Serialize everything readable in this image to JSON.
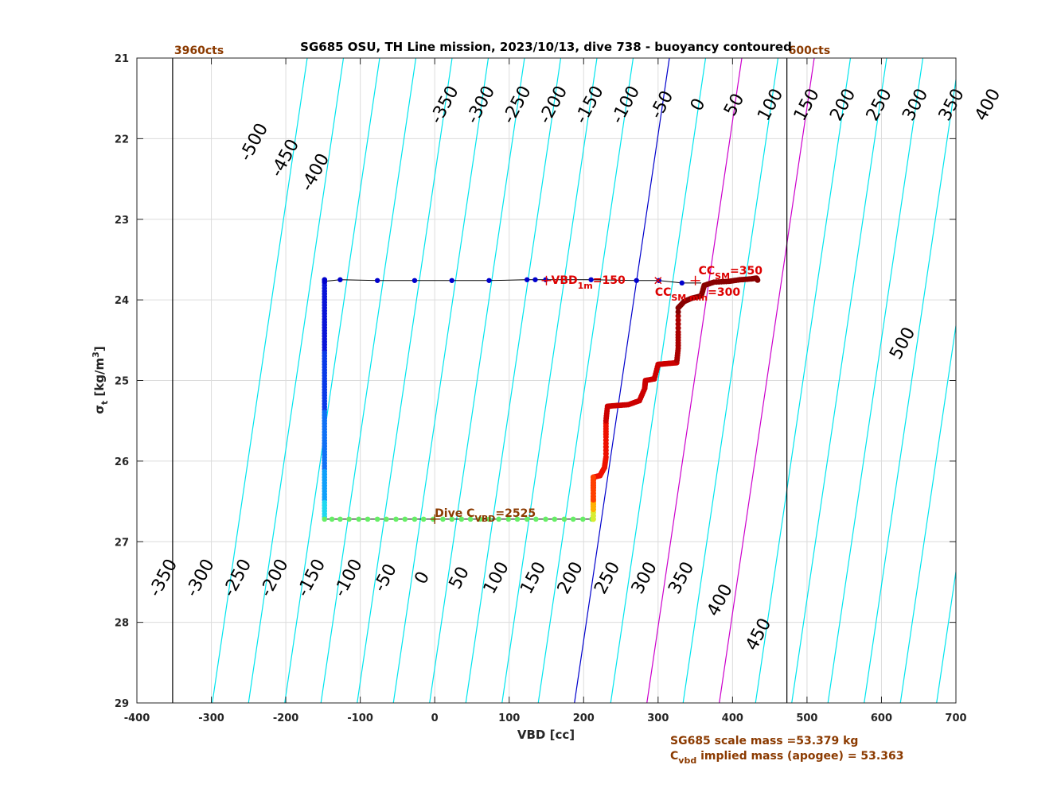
{
  "chart_data": {
    "type": "scatter",
    "title": "SG685 OSU, TH Line mission, 2023/10/13, dive 738 - buoyancy contoured",
    "xlabel": "VBD [cc]",
    "ylabel": {
      "base": "σ",
      "sub": "t",
      "rest": " [kg/m",
      "sup": "3",
      "end": "]"
    },
    "xlim": [
      -400,
      700
    ],
    "ylim": [
      21,
      29
    ],
    "y_reversed": true,
    "grid": true,
    "xticks": [
      -400,
      -300,
      -200,
      -100,
      0,
      100,
      200,
      300,
      400,
      500,
      600,
      700
    ],
    "yticks": [
      21,
      22,
      23,
      24,
      25,
      26,
      27,
      28,
      29
    ],
    "vbd_limits": [
      {
        "label": "3960cts",
        "x": -352
      },
      {
        "label": "600cts",
        "x": 473
      }
    ],
    "buoyancy_contours": {
      "color": "#00e5ee",
      "levels": [
        -500,
        -450,
        -400,
        -350,
        -300,
        -250,
        -200,
        -150,
        -100,
        -50,
        0,
        50,
        100,
        150,
        200,
        250,
        300,
        350,
        400,
        450,
        500
      ],
      "zero_color": "#0000cc",
      "highlight_color": "#cc00cc",
      "highlight_levels": [
        100,
        200
      ],
      "labels_top": [
        "-500",
        "-450",
        "-400",
        "-350",
        "-300",
        "-250",
        "-200",
        "-150",
        "-100",
        "-50",
        "0",
        "50",
        "100",
        "150",
        "200",
        "250",
        "300",
        "350",
        "400",
        "500"
      ],
      "labels_bottom": [
        "-350",
        "-300",
        "-250",
        "-200",
        "-150",
        "-100",
        "-50",
        "0",
        "50",
        "100",
        "150",
        "200",
        "250",
        "300",
        "350",
        "400",
        "450"
      ]
    },
    "dive_trace": {
      "upper_leg": {
        "color": "#0000cc",
        "points": [
          [
            -148,
            23.75
          ],
          [
            -148,
            23.77
          ],
          [
            -127,
            23.75
          ],
          [
            -77,
            23.76
          ],
          [
            -27,
            23.76
          ],
          [
            23,
            23.76
          ],
          [
            73,
            23.76
          ],
          [
            124,
            23.75
          ],
          [
            135,
            23.75
          ],
          [
            149,
            23.75
          ],
          [
            210,
            23.75
          ],
          [
            271,
            23.76
          ],
          [
            301,
            23.76
          ],
          [
            332,
            23.79
          ]
        ]
      },
      "descent_column": {
        "x": -148,
        "y_from": 23.75,
        "y_to": 26.72
      },
      "bottom_leg": {
        "color": "#66ee66",
        "points": [
          [
            -148,
            26.72
          ],
          [
            -138,
            26.72
          ],
          [
            -127,
            26.72
          ],
          [
            -115,
            26.72
          ],
          [
            -102,
            26.72
          ],
          [
            -90,
            26.72
          ],
          [
            -77,
            26.72
          ],
          [
            -65,
            26.72
          ],
          [
            -52,
            26.72
          ],
          [
            -40,
            26.72
          ],
          [
            -27,
            26.72
          ],
          [
            -15,
            26.72
          ],
          [
            -2,
            26.72
          ],
          [
            11,
            26.72
          ],
          [
            23,
            26.72
          ],
          [
            36,
            26.72
          ],
          [
            48,
            26.72
          ],
          [
            61,
            26.72
          ],
          [
            73,
            26.72
          ],
          [
            86,
            26.72
          ],
          [
            99,
            26.72
          ],
          [
            111,
            26.72
          ],
          [
            124,
            26.72
          ],
          [
            136,
            26.72
          ],
          [
            149,
            26.72
          ],
          [
            161,
            26.72
          ],
          [
            174,
            26.72
          ],
          [
            186,
            26.72
          ],
          [
            199,
            26.72
          ],
          [
            211,
            26.72
          ]
        ]
      },
      "ascent_leg": {
        "color": "#cc0000",
        "points": [
          [
            213,
            26.6
          ],
          [
            213,
            26.4
          ],
          [
            213,
            26.2
          ],
          [
            222,
            26.18
          ],
          [
            228,
            26.08
          ],
          [
            230,
            25.95
          ],
          [
            230,
            25.7
          ],
          [
            230,
            25.5
          ],
          [
            232,
            25.32
          ],
          [
            245,
            25.31
          ],
          [
            260,
            25.3
          ],
          [
            275,
            25.25
          ],
          [
            282,
            25.1
          ],
          [
            283,
            25.0
          ],
          [
            295,
            24.98
          ],
          [
            300,
            24.8
          ],
          [
            312,
            24.79
          ],
          [
            325,
            24.78
          ],
          [
            327,
            24.6
          ],
          [
            327,
            24.4
          ],
          [
            327,
            24.1
          ],
          [
            335,
            24.02
          ],
          [
            345,
            23.98
          ],
          [
            358,
            23.95
          ],
          [
            362,
            23.82
          ],
          [
            375,
            23.78
          ],
          [
            395,
            23.77
          ],
          [
            410,
            23.75
          ],
          [
            425,
            23.74
          ],
          [
            432,
            23.73
          ],
          [
            434,
            23.76
          ]
        ]
      }
    },
    "markers": {
      "vbd_1m": {
        "text": "VBD",
        "sub": "1m",
        "value": "=150",
        "x": 150,
        "y": 23.76
      },
      "cc_sm": {
        "text": "CC",
        "sub": "SM",
        "value": "=350",
        "x": 350,
        "y": 23.76
      },
      "cc_sm_min": {
        "text": "CC",
        "sub": "SM min",
        "value": "=300",
        "x": 300,
        "y": 23.76
      },
      "dive_cvbd": {
        "text": "Dive C",
        "sub": "VBD",
        "value": "=2525",
        "x": 0,
        "y": 26.72
      }
    },
    "annotations": {
      "scale_mass": "SG685 scale mass =53.379 kg",
      "implied_mass": {
        "pre": "C",
        "sub": "vbd",
        "rest": " implied mass (apogee) = 53.363"
      }
    }
  }
}
